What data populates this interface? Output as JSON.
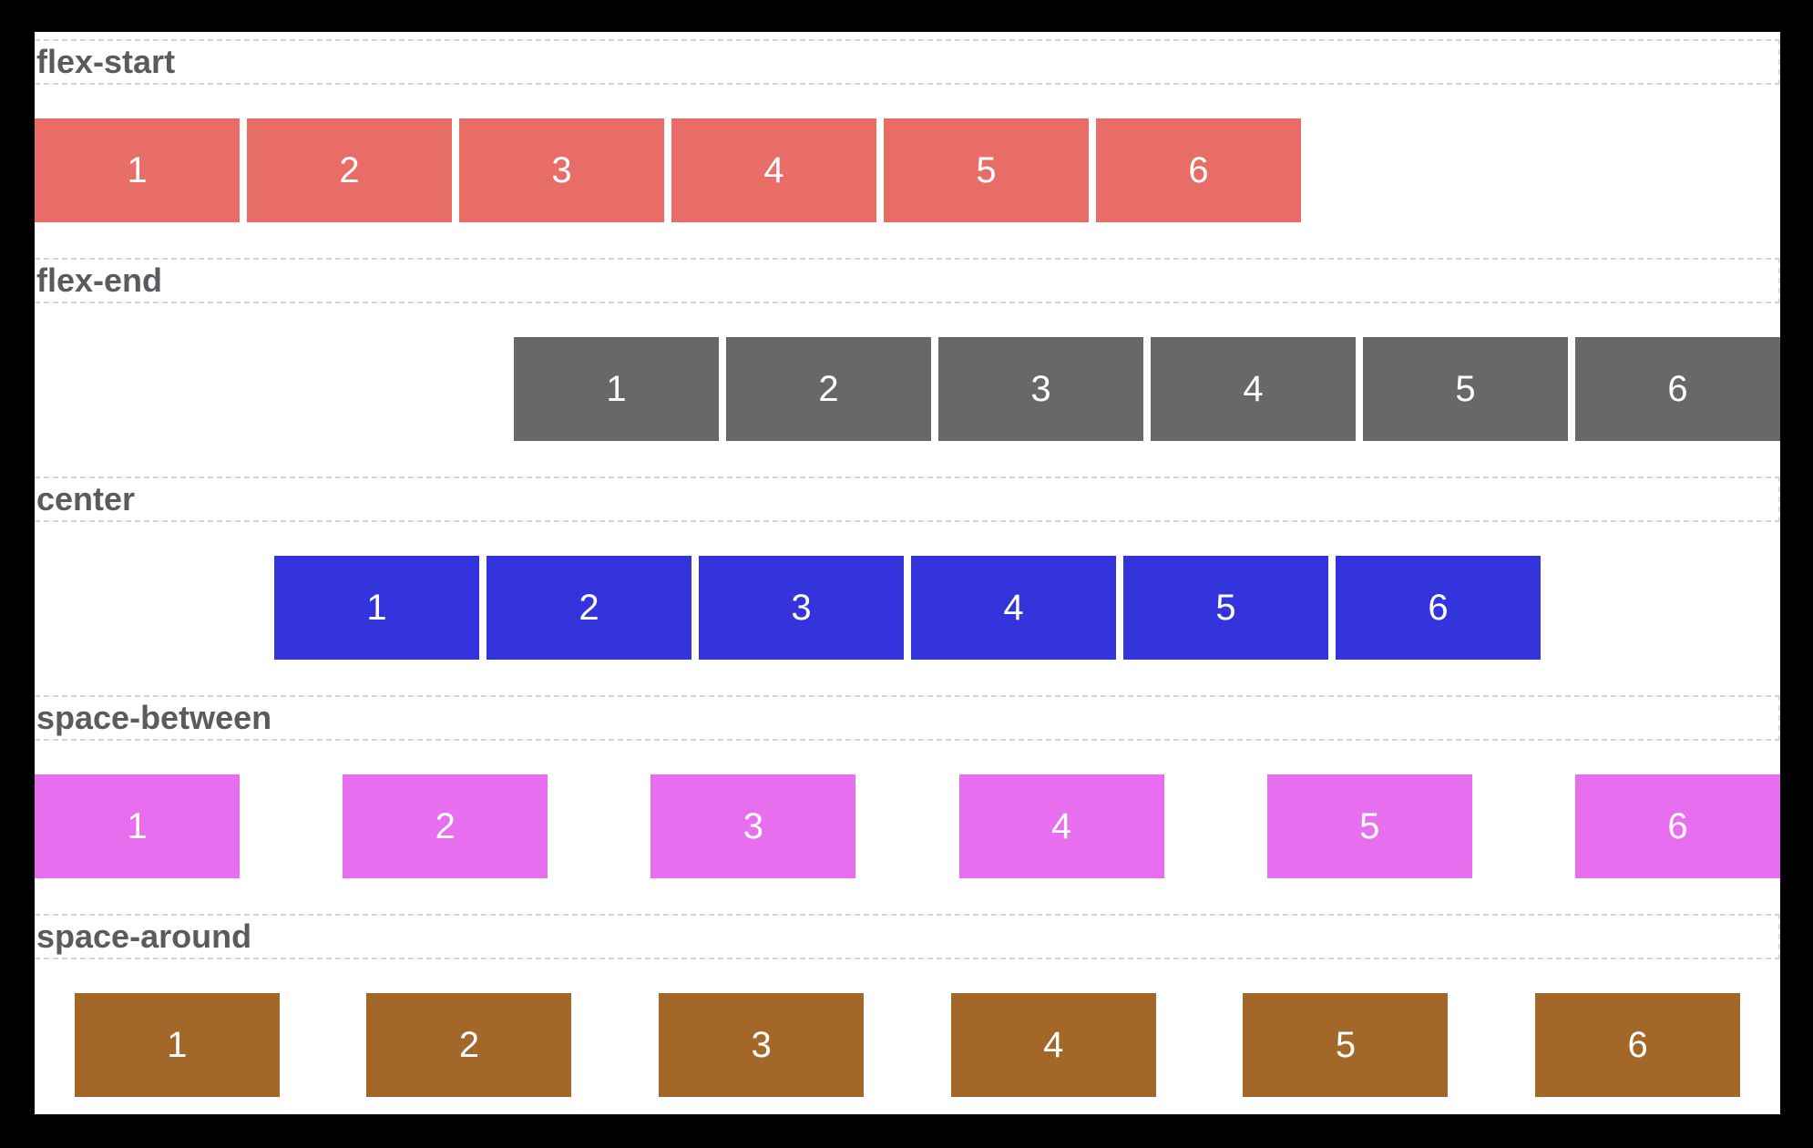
{
  "figure": {
    "description_colors": {
      "frame_background": "#000000",
      "canvas_background": "#ffffff",
      "dashed_line": "#d6d6d6",
      "label_text": "#5a5b5f",
      "item_text": "#ffffff"
    }
  },
  "sections": [
    {
      "label": "flex-start",
      "justify": "flex-start",
      "color": "#e86d66",
      "items": [
        "1",
        "2",
        "3",
        "4",
        "5",
        "6"
      ]
    },
    {
      "label": "flex-end",
      "justify": "flex-end",
      "color": "#686868",
      "items": [
        "1",
        "2",
        "3",
        "4",
        "5",
        "6"
      ]
    },
    {
      "label": "center",
      "justify": "center",
      "color": "#3434dd",
      "items": [
        "1",
        "2",
        "3",
        "4",
        "5",
        "6"
      ]
    },
    {
      "label": "space-between",
      "justify": "space-between",
      "color": "#e86ef0",
      "items": [
        "1",
        "2",
        "3",
        "4",
        "5",
        "6"
      ]
    },
    {
      "label": "space-around",
      "justify": "space-around",
      "color": "#a4672a",
      "items": [
        "1",
        "2",
        "3",
        "4",
        "5",
        "6"
      ]
    }
  ]
}
